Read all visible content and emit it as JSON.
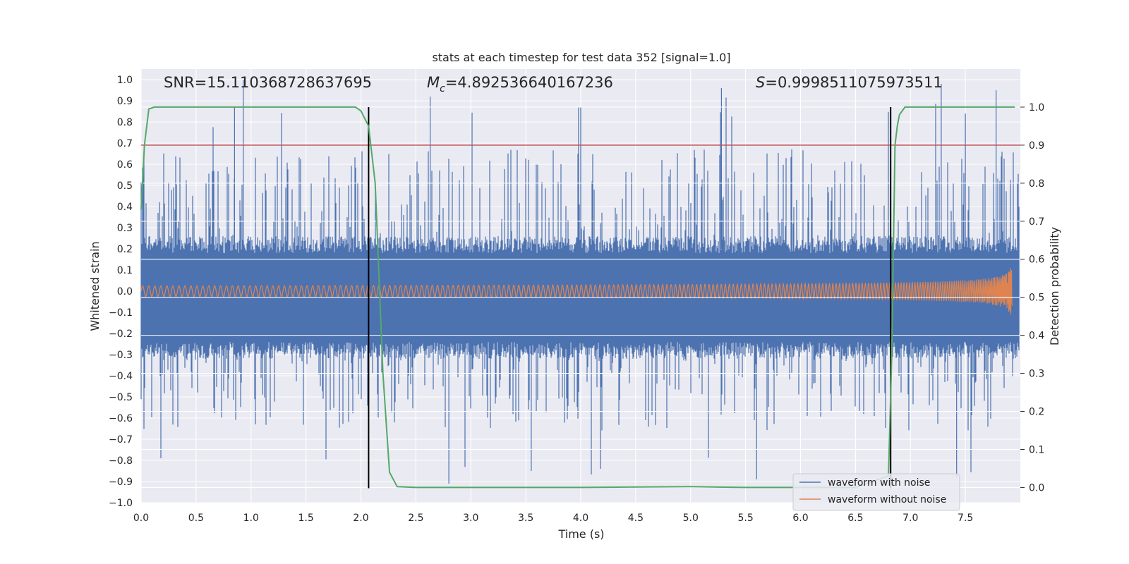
{
  "chart_data": {
    "type": "line",
    "title": "stats at each timestep for test data 352 [signal=1.0]",
    "xlabel": "Time (s)",
    "ylabel": "Whitened strain",
    "y2label": "Detection probability",
    "xlim": [
      0.0,
      8.0
    ],
    "ylim": [
      -1.0,
      1.05
    ],
    "y2lim": [
      -0.04,
      1.1
    ],
    "x_ticks": [
      "0.0",
      "0.5",
      "1.0",
      "1.5",
      "2.0",
      "2.5",
      "3.0",
      "3.5",
      "4.0",
      "4.5",
      "5.0",
      "5.5",
      "6.0",
      "6.5",
      "7.0",
      "7.5"
    ],
    "y_ticks": [
      "1.0",
      "0.9",
      "0.8",
      "0.7",
      "0.6",
      "0.5",
      "0.4",
      "0.3",
      "0.2",
      "0.1",
      "0.0",
      "−0.1",
      "−0.2",
      "−0.3",
      "−0.4",
      "−0.5",
      "−0.6",
      "−0.7",
      "−0.8",
      "−0.9",
      "−1.0"
    ],
    "y2_ticks": [
      "1.0",
      "0.9",
      "0.8",
      "0.7",
      "0.6",
      "0.5",
      "0.4",
      "0.3",
      "0.2",
      "0.1",
      "0.0"
    ],
    "annotations": {
      "snr": "SNR=15.110368728637695",
      "mc_symbol": "M",
      "mc_sub": "c",
      "mc_value": "=4.892536640167236",
      "s_symbol": "S",
      "s_value": "=0.9998511075973511"
    },
    "series": [
      {
        "name": "waveform with noise",
        "color": "#4c72b0",
        "kind": "noise",
        "envelope_upper": 0.22,
        "envelope_lower": -0.28,
        "spike_range": [
          -0.91,
          1.0
        ]
      },
      {
        "name": "waveform without noise",
        "color": "#dd8452",
        "kind": "chirp",
        "amplitude_start": 0.025,
        "amplitude_peak": 0.34,
        "merger_time": 7.93
      },
      {
        "name": "",
        "color": "#55a868",
        "axis": "right",
        "x": [
          0.0,
          0.03,
          0.07,
          0.12,
          0.5,
          1.0,
          1.5,
          1.95,
          2.0,
          2.07,
          2.13,
          2.2,
          2.26,
          2.33,
          2.5,
          3.0,
          4.0,
          5.0,
          5.5,
          6.0,
          6.5,
          6.8,
          6.83,
          6.86,
          6.88,
          6.9,
          6.95,
          7.0,
          7.5,
          7.95
        ],
        "y": [
          0.73,
          0.9,
          0.995,
          1.0,
          1.0,
          1.0,
          1.0,
          1.0,
          0.99,
          0.95,
          0.8,
          0.3,
          0.04,
          0.002,
          0.0,
          0.0,
          0.0,
          0.002,
          0.0,
          0.0,
          0.0,
          0.03,
          0.35,
          0.9,
          0.95,
          0.98,
          1.0,
          1.0,
          1.0,
          1.0
        ]
      }
    ],
    "threshold_line": {
      "axis": "right",
      "y": 0.9,
      "color": "#c44e52"
    },
    "vertical_lines": [
      2.07,
      6.82
    ],
    "legend_placement": "lower-right",
    "grid": true
  }
}
